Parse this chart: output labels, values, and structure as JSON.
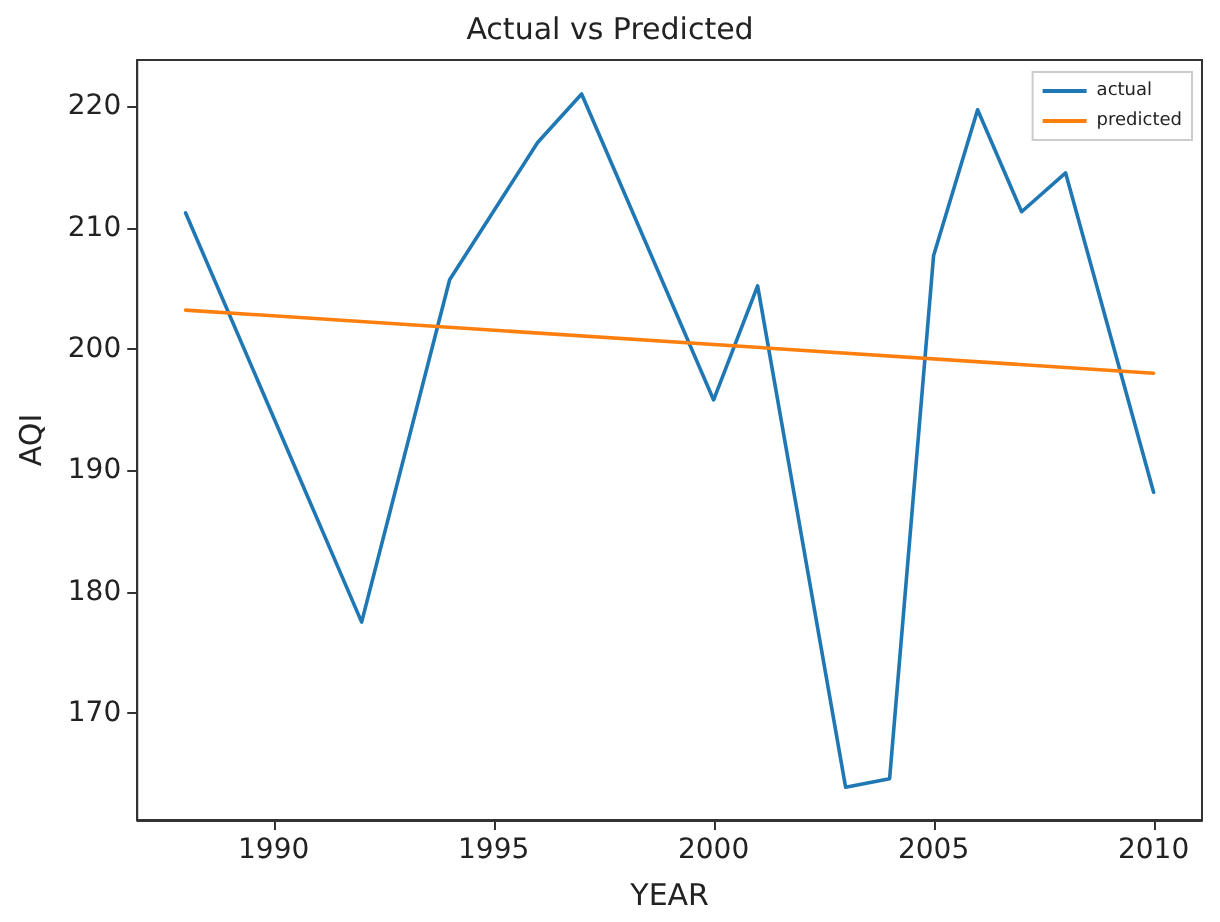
{
  "chart_data": {
    "type": "line",
    "title": "Actual vs Predicted",
    "xlabel": "YEAR",
    "ylabel": "AQI",
    "series": [
      {
        "name": "actual",
        "color": "#1f77b4",
        "x": [
          1988,
          1992,
          1994,
          1996,
          1997,
          2000,
          2001,
          2003,
          2004,
          2005,
          2006,
          2007,
          2008,
          2010
        ],
        "values": [
          211.2,
          177.5,
          205.7,
          217,
          221,
          195.8,
          205.2,
          163.9,
          164.6,
          207.7,
          219.7,
          211.3,
          214.5,
          188.2
        ]
      },
      {
        "name": "predicted",
        "color": "#ff7f0e",
        "x": [
          1988,
          2010
        ],
        "values": [
          203.2,
          198.0
        ]
      }
    ],
    "xlim": [
      1986.9,
      2011.1
    ],
    "xticks": [
      1990,
      1995,
      2000,
      2005,
      2010
    ],
    "ylim": [
      161.2,
      223.8
    ],
    "yticks": [
      170,
      180,
      190,
      200,
      210,
      220
    ],
    "grid": false,
    "legend": "top right",
    "marker": "none",
    "line_style": "solid"
  }
}
